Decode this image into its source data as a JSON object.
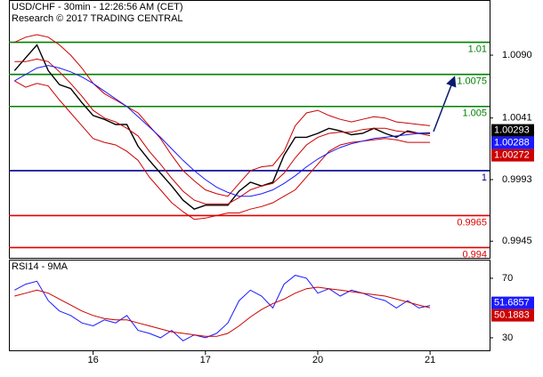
{
  "chart_data": [
    {
      "type": "line",
      "title": "USD/CHF - 30min - 12:26:56 AM (CET)",
      "subtitle": "Research © 2017 TRADING CENTRAL",
      "xlim": [
        0.25,
        4.53
      ],
      "ylim": [
        0.9932,
        1.0133
      ],
      "yticks": [
        {
          "value": 1.009,
          "label": "1.0090"
        },
        1.0041,
        0.9993,
        0.9945
      ],
      "x": [
        0.3,
        0.4,
        0.5,
        0.6,
        0.7,
        0.8,
        0.9,
        1.0,
        1.1,
        1.2,
        1.3,
        1.4,
        1.5,
        1.6,
        1.7,
        1.8,
        1.9,
        2.0,
        2.1,
        2.2,
        2.3,
        2.4,
        2.5,
        2.6,
        2.7,
        2.8,
        2.9,
        3.0,
        3.1,
        3.2,
        3.3,
        3.4,
        3.5,
        3.6,
        3.7,
        3.8,
        3.9,
        4.0
      ],
      "series": [
        {
          "color": "#000000",
          "width": 1.4,
          "values": [
            1.0078,
            1.0088,
            1.0098,
            1.0078,
            1.0067,
            1.0064,
            1.0053,
            1.0043,
            1.004,
            1.0036,
            1.0036,
            1.0019,
            1.0008,
            0.9998,
            0.9988,
            0.9977,
            0.997,
            0.9973,
            0.9973,
            0.9973,
            0.9984,
            0.9991,
            0.9988,
            0.9991,
            1.0012,
            1.0026,
            1.0026,
            1.0029,
            1.0033,
            1.0031,
            1.0028,
            1.0029,
            1.0033,
            1.0029,
            1.0026,
            1.0031,
            1.0029,
            1.00293
          ]
        },
        {
          "color": "#cc0000",
          "width": 1,
          "values": [
            1.01,
            1.0104,
            1.0106,
            1.0104,
            1.0098,
            1.009,
            1.008,
            1.0068,
            1.006,
            1.0055,
            1.005,
            1.0045,
            1.0035,
            1.0025,
            1.0012,
            1.0,
            0.9992,
            0.9985,
            0.9982,
            0.998,
            0.999,
            1.0,
            1.0003,
            1.0004,
            1.0015,
            1.0035,
            1.0045,
            1.0047,
            1.0043,
            1.004,
            1.0038,
            1.004,
            1.0042,
            1.0041,
            1.0038,
            1.0037,
            1.0036,
            1.0035
          ]
        },
        {
          "color": "#cc0000",
          "width": 1,
          "values": [
            1.007,
            1.0065,
            1.0068,
            1.0066,
            1.0055,
            1.0045,
            1.0035,
            1.0025,
            1.0022,
            1.002,
            1.0015,
            1.0008,
            0.9995,
            0.9985,
            0.9975,
            0.9968,
            0.9962,
            0.9963,
            0.9965,
            0.9967,
            0.9967,
            0.997,
            0.9972,
            0.9975,
            0.998,
            0.9985,
            0.9995,
            1.0005,
            1.0015,
            1.002,
            1.0022,
            1.0023,
            1.0024,
            1.0025,
            1.0024,
            1.0022,
            1.0022,
            1.0022
          ]
        },
        {
          "color": "#cc0000",
          "width": 1,
          "values": [
            1.0085,
            1.0085,
            1.0087,
            1.0085,
            1.0077,
            1.0068,
            1.0058,
            1.0047,
            1.0041,
            1.0038,
            1.0033,
            1.0027,
            1.0015,
            1.0005,
            0.9994,
            0.9984,
            0.9977,
            0.9974,
            0.9974,
            0.9974,
            0.9979,
            0.9985,
            0.9988,
            0.999,
            0.9998,
            1.001,
            1.002,
            1.0026,
            1.0029,
            1.003,
            1.003,
            1.0032,
            1.0033,
            1.0033,
            1.0031,
            1.003,
            1.0029,
            1.00272
          ]
        },
        {
          "color": "#1a1aff",
          "width": 1,
          "values": [
            1.007,
            1.0075,
            1.008,
            1.0082,
            1.008,
            1.0077,
            1.0073,
            1.0068,
            1.0062,
            1.0056,
            1.005,
            1.0042,
            1.0034,
            1.0026,
            1.0017,
            1.0008,
            1.0,
            0.9993,
            0.9987,
            0.9983,
            0.998,
            0.998,
            0.9982,
            0.9985,
            0.999,
            0.9996,
            1.0003,
            1.0009,
            1.0014,
            1.0018,
            1.0021,
            1.0023,
            1.0025,
            1.0026,
            1.0027,
            1.0028,
            1.0029,
            1.00288
          ]
        }
      ],
      "levels": [
        {
          "value": 1.01,
          "color": "#008000"
        },
        {
          "value": 1.0075,
          "color": "#008000"
        },
        {
          "value": 1.005,
          "color": "#008000"
        },
        {
          "value": 1,
          "color": "#00008b"
        },
        {
          "value": 0.9965,
          "color": "#e00000"
        },
        {
          "value": 0.994,
          "color": "#e00000"
        }
      ]
    },
    {
      "type": "line",
      "title": "RSI14 - 9MA",
      "xlim": [
        0.25,
        4.53
      ],
      "ylim": [
        21,
        82.5
      ],
      "yticks": [
        70,
        30
      ],
      "xticks": [
        {
          "value": 1,
          "label": "16"
        },
        {
          "value": 2,
          "label": "17"
        },
        {
          "value": 3,
          "label": "20"
        },
        {
          "value": 4,
          "label": "21"
        }
      ],
      "x": [
        0.3,
        0.4,
        0.5,
        0.6,
        0.7,
        0.8,
        0.9,
        1.0,
        1.1,
        1.2,
        1.3,
        1.4,
        1.5,
        1.6,
        1.7,
        1.8,
        1.9,
        2.0,
        2.1,
        2.2,
        2.3,
        2.4,
        2.5,
        2.6,
        2.7,
        2.8,
        2.9,
        3.0,
        3.1,
        3.2,
        3.3,
        3.4,
        3.5,
        3.6,
        3.7,
        3.8,
        3.9,
        4.0
      ],
      "series": [
        {
          "color": "#1a1aff",
          "width": 1,
          "values": [
            62,
            66,
            68,
            55,
            48,
            45,
            40,
            38,
            42,
            40,
            45,
            35,
            33,
            30,
            35,
            28,
            32,
            30,
            33,
            40,
            55,
            62,
            58,
            50,
            66,
            72,
            70,
            60,
            63,
            58,
            62,
            60,
            57,
            55,
            50,
            55,
            50,
            51.6857
          ]
        },
        {
          "color": "#cc0000",
          "width": 1,
          "values": [
            58,
            60,
            62,
            60,
            56,
            52,
            48,
            45,
            43,
            42,
            42,
            40,
            38,
            36,
            34,
            33,
            32,
            31,
            31,
            33,
            38,
            44,
            49,
            53,
            56,
            60,
            63,
            64,
            63,
            62,
            61,
            60,
            59,
            58,
            56,
            54,
            52,
            50.1883
          ]
        }
      ]
    }
  ]
}
